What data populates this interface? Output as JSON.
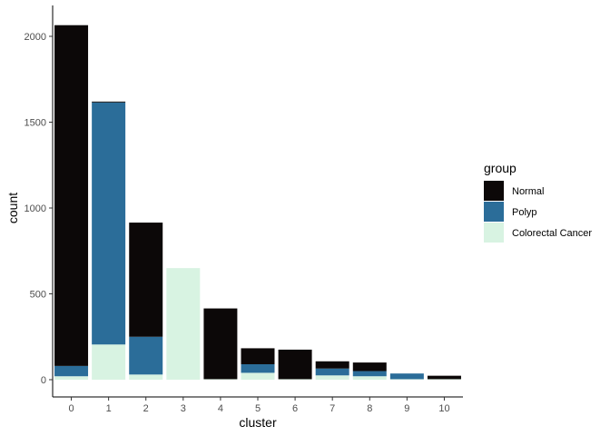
{
  "chart_data": {
    "type": "bar",
    "stacked": true,
    "xlabel": "cluster",
    "ylabel": "count",
    "categories": [
      "0",
      "1",
      "2",
      "3",
      "4",
      "5",
      "6",
      "7",
      "8",
      "9",
      "10"
    ],
    "ylim": [
      0,
      2070
    ],
    "yticks": [
      0,
      500,
      1000,
      1500,
      2000
    ],
    "grid": false,
    "legend": {
      "title": "group",
      "position": "right"
    },
    "series": [
      {
        "name": "Colorectal Cancer",
        "color": "#d8f3e2",
        "values": [
          20,
          205,
          30,
          650,
          3,
          40,
          3,
          25,
          20,
          3,
          3
        ]
      },
      {
        "name": "Polyp",
        "color": "#2b6d99",
        "values": [
          60,
          1410,
          220,
          0,
          0,
          50,
          0,
          40,
          30,
          33,
          0
        ]
      },
      {
        "name": "Normal",
        "color": "#0c0808",
        "values": [
          1985,
          5,
          665,
          0,
          412,
          93,
          172,
          42,
          50,
          0,
          20
        ]
      }
    ],
    "legend_order": [
      "Normal",
      "Polyp",
      "Colorectal Cancer"
    ]
  }
}
